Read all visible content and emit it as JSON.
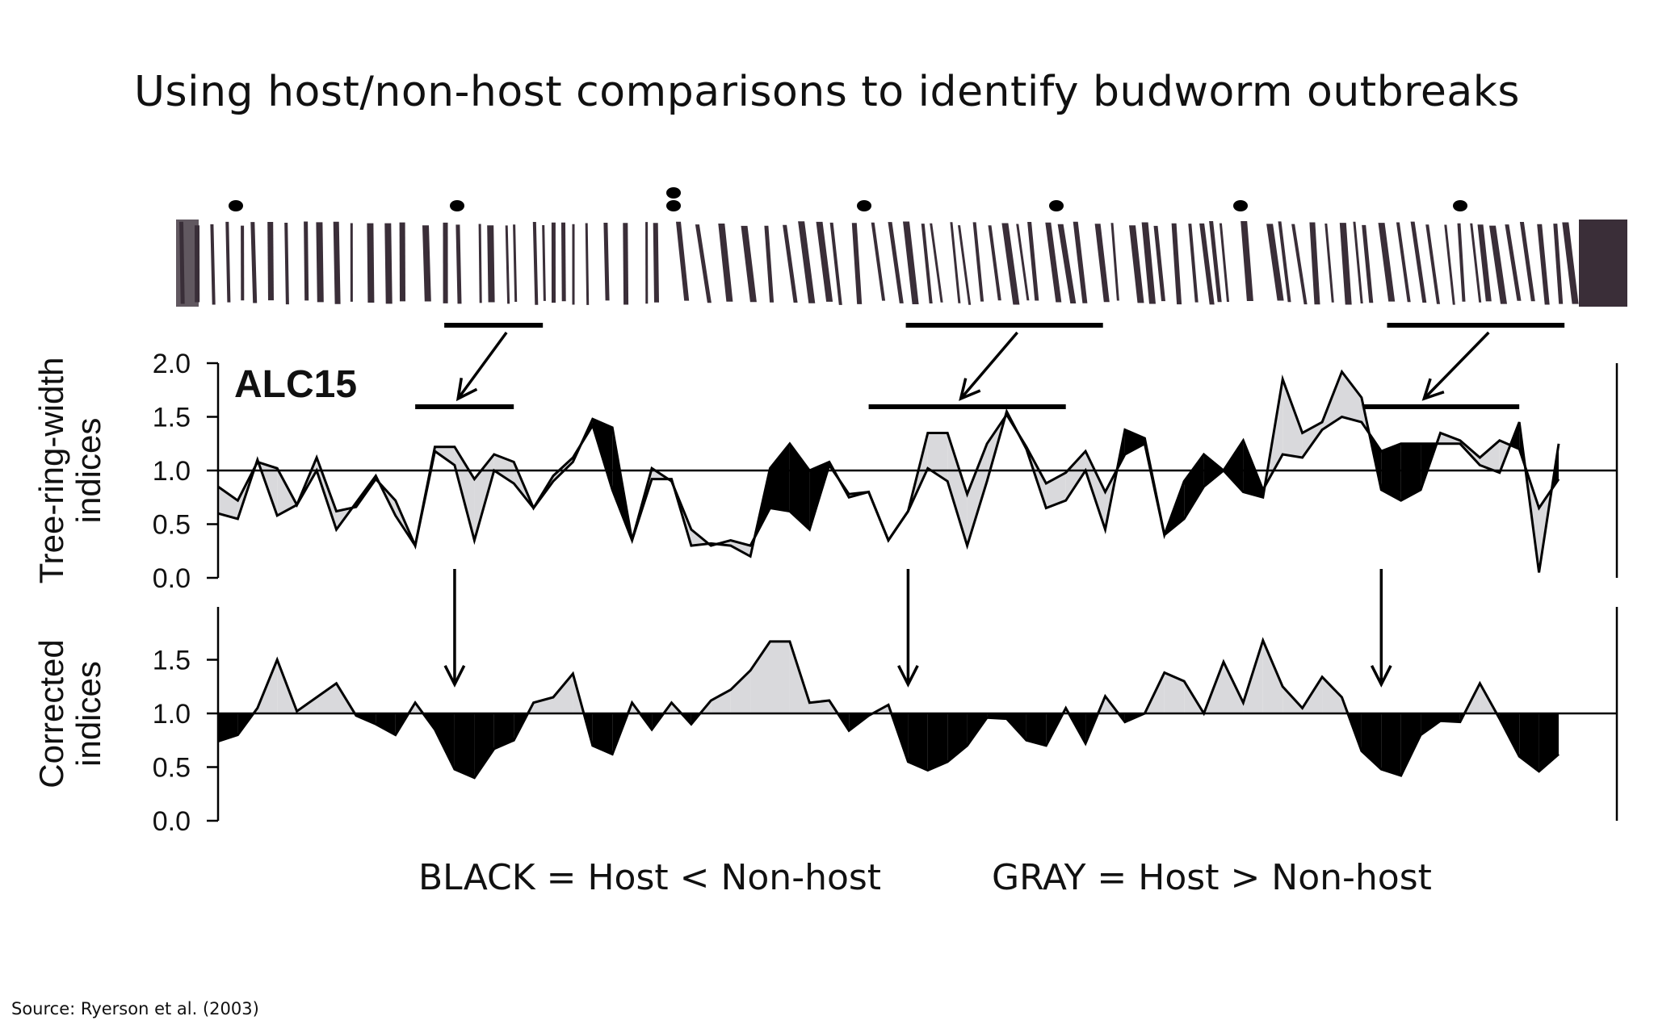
{
  "title": "Using host/non-host comparisons to identify budworm outbreaks",
  "source": "Source: Ryerson et al. (2003)",
  "legend": {
    "black": "BLACK = Host < Non-host",
    "gray": "GRAY = Host > Non-host"
  },
  "colors": {
    "host_lower": "#000000",
    "host_higher": "#d9d9dc",
    "core": "#3a2e38"
  },
  "chart_data": [
    {
      "type": "area",
      "site_label": "ALC15",
      "ylabel": [
        "Tree-ring-width",
        "indices"
      ],
      "ylim": [
        0,
        2.0
      ],
      "yticks": [
        "0.0",
        "0.5",
        "1.0",
        "1.5",
        "2.0"
      ],
      "reference_line": 1.0,
      "series": [
        {
          "name": "Host",
          "values": [
            0.85,
            0.72,
            1.08,
            1.02,
            0.68,
            1.12,
            0.62,
            0.66,
            0.92,
            0.72,
            0.3,
            1.22,
            1.22,
            0.92,
            1.15,
            1.08,
            0.65,
            0.95,
            1.12,
            1.42,
            0.82,
            0.35,
            1.02,
            0.9,
            0.45,
            0.3,
            0.35,
            0.3,
            0.65,
            0.62,
            0.45,
            1.05,
            0.78,
            0.8,
            0.35,
            0.62,
            1.35,
            1.35,
            0.78,
            1.25,
            1.52,
            1.22,
            0.88,
            0.98,
            1.18,
            0.8,
            1.15,
            1.25,
            0.4,
            0.55,
            0.85,
            1.0,
            0.8,
            0.75,
            1.85,
            1.35,
            1.45,
            1.92,
            1.68,
            0.82,
            0.72,
            0.82,
            1.35,
            1.28,
            1.12,
            1.28,
            1.2,
            0.65,
            0.92
          ]
        },
        {
          "name": "Non-host",
          "values": [
            0.6,
            0.55,
            1.1,
            0.58,
            0.68,
            1.0,
            0.45,
            0.7,
            0.95,
            0.58,
            0.3,
            1.18,
            1.05,
            0.35,
            1.0,
            0.88,
            0.65,
            0.9,
            1.08,
            1.48,
            1.4,
            0.35,
            0.92,
            0.92,
            0.3,
            0.32,
            0.3,
            0.2,
            1.02,
            1.25,
            1.0,
            1.08,
            0.75,
            0.8,
            0.35,
            0.62,
            1.02,
            0.9,
            0.3,
            0.9,
            1.55,
            1.2,
            0.65,
            0.72,
            1.0,
            0.45,
            1.38,
            1.3,
            0.4,
            0.9,
            1.15,
            1.0,
            1.28,
            0.82,
            1.15,
            1.12,
            1.38,
            1.5,
            1.45,
            1.18,
            1.25,
            1.25,
            1.25,
            1.25,
            1.05,
            0.98,
            1.45,
            0.05,
            1.25
          ]
        }
      ]
    },
    {
      "type": "area",
      "ylabel": [
        "Corrected",
        "indices"
      ],
      "ylim": [
        0,
        2.0
      ],
      "yticks": [
        "0.0",
        "0.5",
        "1.0",
        "1.5"
      ],
      "reference_line": 1.0,
      "series": [
        {
          "name": "Corrected",
          "values": [
            0.74,
            0.8,
            1.05,
            1.5,
            1.02,
            1.15,
            1.28,
            0.98,
            0.9,
            0.8,
            1.1,
            0.85,
            0.48,
            0.4,
            0.67,
            0.75,
            1.1,
            1.15,
            1.37,
            0.7,
            0.62,
            1.1,
            0.85,
            1.1,
            0.9,
            1.12,
            1.22,
            1.4,
            1.67,
            1.67,
            1.1,
            1.12,
            0.84,
            0.98,
            1.08,
            0.55,
            0.47,
            0.55,
            0.7,
            0.96,
            0.95,
            0.75,
            0.7,
            1.05,
            0.72,
            1.16,
            0.92,
            1.0,
            1.38,
            1.3,
            1.0,
            1.48,
            1.1,
            1.68,
            1.25,
            1.05,
            1.34,
            1.15,
            0.65,
            0.48,
            0.42,
            0.8,
            0.93,
            0.92,
            1.28,
            0.95,
            0.6,
            0.46,
            0.62
          ]
        }
      ]
    }
  ],
  "outbreak_markers": {
    "core_dots": [
      1,
      1,
      2,
      1,
      1,
      1,
      1
    ],
    "periods": [
      {
        "start_index": 10,
        "end_index": 15
      },
      {
        "start_index": 33,
        "end_index": 43
      },
      {
        "start_index": 57,
        "end_index": 66
      }
    ]
  }
}
